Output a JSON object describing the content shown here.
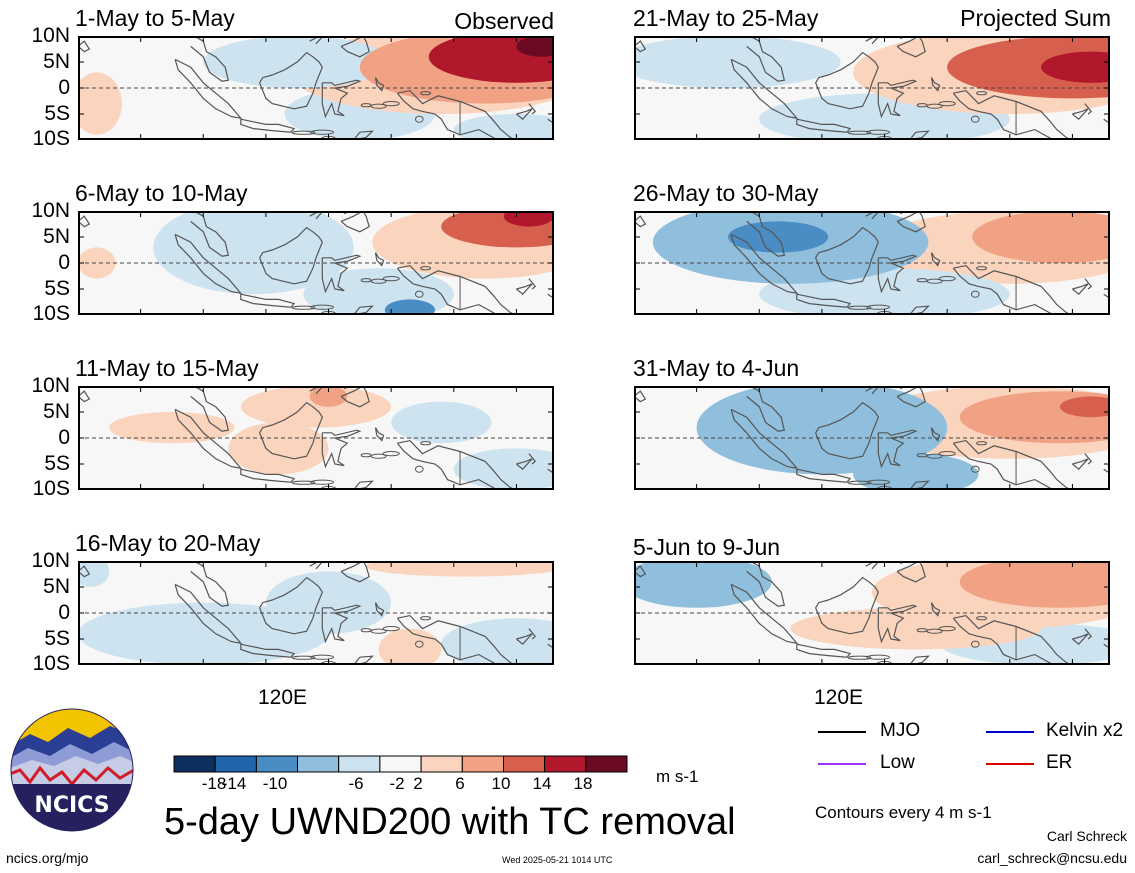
{
  "column_headers": {
    "left": "Observed",
    "right": "Projected Sum"
  },
  "lat_ticks": [
    "10N",
    "5N",
    "0",
    "5S",
    "10S"
  ],
  "lon_tick": "120E",
  "colors": {
    "m18": "#0d2f5e",
    "m14": "#2166ac",
    "m10": "#4a8cc4",
    "m6": "#8fbfdc",
    "m2": "#cde3f0",
    "p2": "#f7f7f7",
    "p6": "#fbd4bd",
    "p10": "#f1a285",
    "p14": "#d6604d",
    "p18": "#b2182b",
    "p22": "#6b0a23",
    "land": "#555555"
  },
  "chart_data": [
    {
      "type": "heatmap",
      "variable": "UWND200",
      "title": "1-May to 5-May",
      "source": "Observed",
      "blobs": [
        {
          "lon": 150,
          "lat": 6,
          "rx": 14,
          "ry": 5,
          "value": 14
        },
        {
          "lon": 154,
          "lat": 8,
          "rx": 4,
          "ry": 2,
          "value": 18
        },
        {
          "lon": 145,
          "lat": 4,
          "rx": 20,
          "ry": 7,
          "value": 8
        },
        {
          "lon": 138,
          "lat": 3,
          "rx": 24,
          "ry": 8,
          "value": 4
        },
        {
          "lon": 115,
          "lat": 5,
          "rx": 15,
          "ry": 5,
          "value": -4
        },
        {
          "lon": 125,
          "lat": -5,
          "rx": 12,
          "ry": 5,
          "value": -3
        },
        {
          "lon": 150,
          "lat": -8,
          "rx": 10,
          "ry": 3,
          "value": -3
        },
        {
          "lon": 83,
          "lat": -3,
          "rx": 4,
          "ry": 6,
          "value": 4
        }
      ]
    },
    {
      "type": "heatmap",
      "variable": "UWND200",
      "title": "6-May to 10-May",
      "source": "Observed",
      "blobs": [
        {
          "lon": 150,
          "lat": 7,
          "rx": 12,
          "ry": 4,
          "value": 10
        },
        {
          "lon": 152,
          "lat": 9,
          "rx": 4,
          "ry": 2,
          "value": 14
        },
        {
          "lon": 145,
          "lat": 4,
          "rx": 18,
          "ry": 7,
          "value": 5
        },
        {
          "lon": 108,
          "lat": 3,
          "rx": 16,
          "ry": 9,
          "value": -5
        },
        {
          "lon": 128,
          "lat": -6,
          "rx": 12,
          "ry": 5,
          "value": -4
        },
        {
          "lon": 133,
          "lat": -9,
          "rx": 4,
          "ry": 2,
          "value": -10
        },
        {
          "lon": 83,
          "lat": 0,
          "rx": 3,
          "ry": 3,
          "value": 4
        }
      ]
    },
    {
      "type": "heatmap",
      "variable": "UWND200",
      "title": "11-May to 15-May",
      "source": "Observed",
      "blobs": [
        {
          "lon": 118,
          "lat": 6,
          "rx": 12,
          "ry": 4,
          "value": 5
        },
        {
          "lon": 120,
          "lat": 8,
          "rx": 3,
          "ry": 2,
          "value": 8
        },
        {
          "lon": 95,
          "lat": 2,
          "rx": 10,
          "ry": 3,
          "value": 3
        },
        {
          "lon": 112,
          "lat": -2,
          "rx": 8,
          "ry": 5,
          "value": 3
        },
        {
          "lon": 138,
          "lat": 3,
          "rx": 8,
          "ry": 4,
          "value": -3
        },
        {
          "lon": 150,
          "lat": -6,
          "rx": 10,
          "ry": 4,
          "value": -3
        }
      ]
    },
    {
      "type": "heatmap",
      "variable": "UWND200",
      "title": "16-May to 20-May",
      "source": "Observed",
      "blobs": [
        {
          "lon": 100,
          "lat": -4,
          "rx": 20,
          "ry": 6,
          "value": -4
        },
        {
          "lon": 150,
          "lat": -6,
          "rx": 12,
          "ry": 5,
          "value": -5
        },
        {
          "lon": 142,
          "lat": 9,
          "rx": 16,
          "ry": 2,
          "value": 3
        },
        {
          "lon": 133,
          "lat": -7,
          "rx": 5,
          "ry": 4,
          "value": 4
        },
        {
          "lon": 120,
          "lat": 2,
          "rx": 10,
          "ry": 6,
          "value": -3
        },
        {
          "lon": 82,
          "lat": 8,
          "rx": 3,
          "ry": 3,
          "value": -5
        }
      ]
    },
    {
      "type": "heatmap",
      "variable": "UWND200",
      "title": "21-May to 25-May",
      "source": "Projected Sum",
      "blobs": [
        {
          "lon": 150,
          "lat": 4,
          "rx": 20,
          "ry": 6,
          "value": 10
        },
        {
          "lon": 153,
          "lat": 4,
          "rx": 8,
          "ry": 3,
          "value": 14
        },
        {
          "lon": 140,
          "lat": 3,
          "rx": 25,
          "ry": 8,
          "value": 4
        },
        {
          "lon": 95,
          "lat": 5,
          "rx": 18,
          "ry": 5,
          "value": -4
        },
        {
          "lon": 120,
          "lat": -6,
          "rx": 20,
          "ry": 5,
          "value": -3
        }
      ]
    },
    {
      "type": "heatmap",
      "variable": "UWND200",
      "title": "26-May to 30-May",
      "source": "Projected Sum",
      "blobs": [
        {
          "lon": 148,
          "lat": 5,
          "rx": 14,
          "ry": 5,
          "value": 9
        },
        {
          "lon": 140,
          "lat": 3,
          "rx": 22,
          "ry": 7,
          "value": 4
        },
        {
          "lon": 105,
          "lat": 4,
          "rx": 22,
          "ry": 8,
          "value": -7
        },
        {
          "lon": 103,
          "lat": 5,
          "rx": 8,
          "ry": 3,
          "value": -11
        },
        {
          "lon": 120,
          "lat": -6,
          "rx": 20,
          "ry": 5,
          "value": -4
        }
      ]
    },
    {
      "type": "heatmap",
      "variable": "UWND200",
      "title": "31-May to 4-Jun",
      "source": "Projected Sum",
      "blobs": [
        {
          "lon": 148,
          "lat": 4,
          "rx": 16,
          "ry": 5,
          "value": 9
        },
        {
          "lon": 153,
          "lat": 6,
          "rx": 5,
          "ry": 2,
          "value": 13
        },
        {
          "lon": 140,
          "lat": 3,
          "rx": 24,
          "ry": 7,
          "value": 4
        },
        {
          "lon": 110,
          "lat": 2,
          "rx": 20,
          "ry": 9,
          "value": -7
        },
        {
          "lon": 125,
          "lat": -7,
          "rx": 10,
          "ry": 4,
          "value": -7
        }
      ]
    },
    {
      "type": "heatmap",
      "variable": "UWND200",
      "title": "5-Jun to 9-Jun",
      "source": "Projected Sum",
      "blobs": [
        {
          "lon": 148,
          "lat": 6,
          "rx": 16,
          "ry": 5,
          "value": 9
        },
        {
          "lon": 140,
          "lat": 4,
          "rx": 22,
          "ry": 7,
          "value": 4
        },
        {
          "lon": 90,
          "lat": 6,
          "rx": 12,
          "ry": 5,
          "value": -6
        },
        {
          "lon": 125,
          "lat": -3,
          "rx": 20,
          "ry": 4,
          "value": 4
        },
        {
          "lon": 145,
          "lat": -6,
          "rx": 16,
          "ry": 4,
          "value": -3
        }
      ]
    }
  ],
  "colorbar": {
    "labels": [
      "-18",
      "-14",
      "-10",
      "-6",
      "-2",
      "2",
      "6",
      "10",
      "14",
      "18"
    ],
    "units": "m s-1"
  },
  "legend": {
    "items": [
      {
        "label": "MJO",
        "color": "#000000"
      },
      {
        "label": "Kelvin x2",
        "color": "#0000cc"
      },
      {
        "label": "Low",
        "color": "#9933ff"
      },
      {
        "label": "ER",
        "color": "#dd0000"
      }
    ],
    "contour_note": "Contours every 4 m s-1"
  },
  "main_title": "5-day UWND200 with TC removal",
  "logo_text": "NCICS",
  "footer": {
    "url": "ncics.org/mjo",
    "timestamp": "Wed 2025-05-21 1014 UTC",
    "author": "Carl Schreck",
    "email": "carl_schreck@ncsu.edu"
  }
}
